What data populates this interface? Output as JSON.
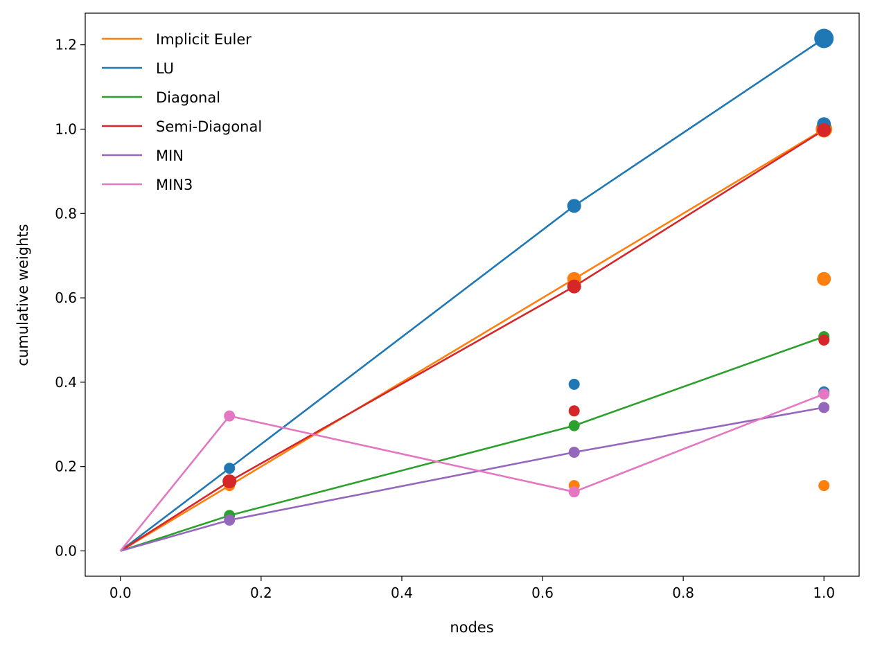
{
  "chart_data": {
    "type": "line",
    "title": "",
    "xlabel": "nodes",
    "ylabel": "cumulative weights",
    "xlim": [
      -0.05,
      1.05
    ],
    "ylim": [
      -0.06,
      1.275
    ],
    "xticks": [
      0.0,
      0.2,
      0.4,
      0.6,
      0.8,
      1.0
    ],
    "xtick_labels": [
      "0.0",
      "0.2",
      "0.4",
      "0.6",
      "0.8",
      "1.0"
    ],
    "yticks": [
      0.0,
      0.2,
      0.4,
      0.6,
      0.8,
      1.0,
      1.2
    ],
    "ytick_labels": [
      "0.0",
      "0.2",
      "0.4",
      "0.6",
      "0.8",
      "1.0",
      "1.2"
    ],
    "grid": false,
    "legend_position": "top-left",
    "x": [
      0.0,
      0.155,
      0.645,
      1.0
    ],
    "series": [
      {
        "name": "Implicit Euler",
        "color": "#ff7f0e",
        "values": [
          0.0,
          0.155,
          0.645,
          1.0
        ],
        "points": [
          {
            "x": 0.155,
            "y": 0.155,
            "size": 8
          },
          {
            "x": 0.645,
            "y": 0.155,
            "size": 8
          },
          {
            "x": 1.0,
            "y": 0.155,
            "size": 8
          },
          {
            "x": 0.645,
            "y": 0.645,
            "size": 10
          },
          {
            "x": 1.0,
            "y": 0.645,
            "size": 10
          },
          {
            "x": 1.0,
            "y": 1.0,
            "size": 12
          }
        ]
      },
      {
        "name": "LU",
        "color": "#1f77b4",
        "values": [
          0.0,
          0.196,
          0.818,
          1.215
        ],
        "points": [
          {
            "x": 0.155,
            "y": 0.196,
            "size": 8
          },
          {
            "x": 0.645,
            "y": 0.395,
            "size": 8
          },
          {
            "x": 1.0,
            "y": 0.377,
            "size": 8
          },
          {
            "x": 0.645,
            "y": 0.818,
            "size": 10
          },
          {
            "x": 1.0,
            "y": 1.012,
            "size": 10
          },
          {
            "x": 1.0,
            "y": 1.215,
            "size": 14
          }
        ]
      },
      {
        "name": "Diagonal",
        "color": "#2ca02c",
        "values": [
          0.0,
          0.084,
          0.297,
          0.508
        ],
        "points": [
          {
            "x": 0.155,
            "y": 0.084,
            "size": 8
          },
          {
            "x": 0.645,
            "y": 0.297,
            "size": 8
          },
          {
            "x": 1.0,
            "y": 0.508,
            "size": 8
          }
        ]
      },
      {
        "name": "Semi-Diagonal",
        "color": "#d62728",
        "values": [
          0.0,
          0.165,
          0.627,
          0.998
        ],
        "points": [
          {
            "x": 0.155,
            "y": 0.165,
            "size": 10
          },
          {
            "x": 0.645,
            "y": 0.332,
            "size": 8
          },
          {
            "x": 1.0,
            "y": 0.5,
            "size": 8
          },
          {
            "x": 0.645,
            "y": 0.627,
            "size": 10
          },
          {
            "x": 1.0,
            "y": 0.998,
            "size": 10
          }
        ]
      },
      {
        "name": "MIN",
        "color": "#9467bd",
        "values": [
          0.0,
          0.073,
          0.234,
          0.34
        ],
        "points": [
          {
            "x": 0.155,
            "y": 0.073,
            "size": 8
          },
          {
            "x": 0.645,
            "y": 0.234,
            "size": 8
          },
          {
            "x": 1.0,
            "y": 0.34,
            "size": 8
          }
        ]
      },
      {
        "name": "MIN3",
        "color": "#e377c2",
        "values": [
          0.0,
          0.32,
          0.14,
          0.372
        ],
        "points": [
          {
            "x": 0.155,
            "y": 0.32,
            "size": 8
          },
          {
            "x": 0.645,
            "y": 0.14,
            "size": 8
          },
          {
            "x": 1.0,
            "y": 0.372,
            "size": 8
          }
        ]
      }
    ]
  }
}
